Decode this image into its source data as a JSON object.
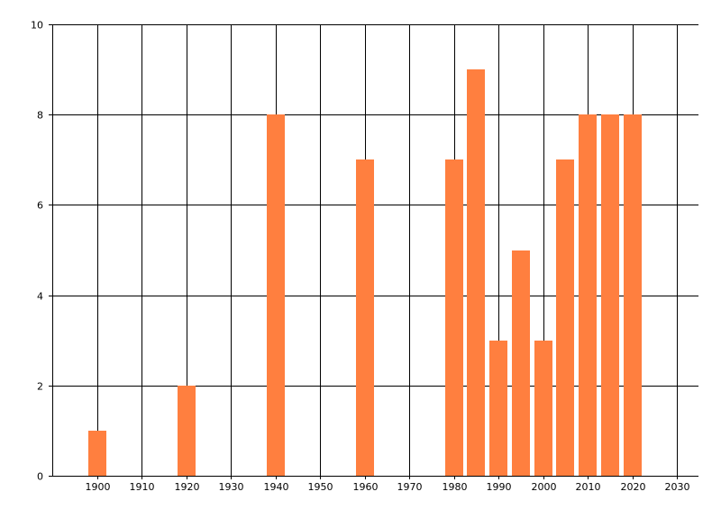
{
  "chart_data": {
    "type": "bar",
    "x": [
      1900,
      1920,
      1940,
      1960,
      1980,
      1985,
      1990,
      1995,
      2000,
      2005,
      2010,
      2015,
      2020
    ],
    "values": [
      1,
      2,
      8,
      7,
      7,
      9,
      3,
      5,
      3,
      7,
      8,
      8,
      8
    ],
    "title": "",
    "xlabel": "",
    "ylabel": "",
    "xlim": [
      1890,
      2035
    ],
    "ylim": [
      0,
      10
    ],
    "x_ticks": [
      "1900",
      "1910",
      "1920",
      "1930",
      "1940",
      "1950",
      "1960",
      "1970",
      "1980",
      "1990",
      "2000",
      "2010",
      "2020",
      "2030"
    ],
    "y_ticks": [
      "0",
      "2",
      "4",
      "6",
      "8",
      "10"
    ],
    "grid": true,
    "bar_color": "#ff7f3f"
  }
}
